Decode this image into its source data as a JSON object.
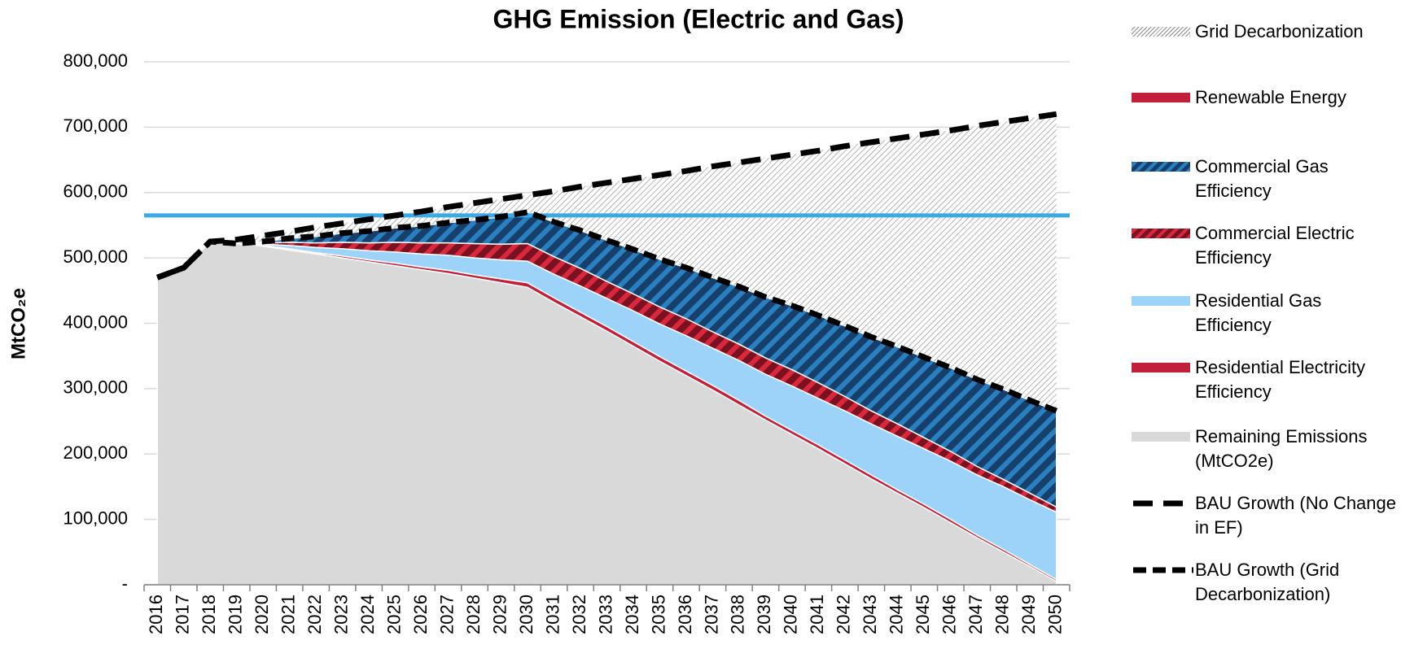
{
  "chart_data": {
    "type": "stacked_area",
    "title": "GHG Emission (Electric and Gas)",
    "y_label": "MtCO₂e",
    "categories": [
      "2016",
      "2017",
      "2018",
      "2019",
      "2020",
      "2021",
      "2022",
      "2023",
      "2024",
      "2025",
      "2026",
      "2027",
      "2028",
      "2029",
      "2030",
      "2031",
      "2032",
      "2033",
      "2034",
      "2035",
      "2036",
      "2037",
      "2038",
      "2039",
      "2040",
      "2041",
      "2042",
      "2043",
      "2044",
      "2045",
      "2046",
      "2047",
      "2048",
      "2049",
      "2050"
    ],
    "ylim": [
      0,
      800000
    ],
    "yticks": [
      {
        "value": 0,
        "label": "-"
      },
      {
        "value": 100000,
        "label": "100,000"
      },
      {
        "value": 200000,
        "label": "200,000"
      },
      {
        "value": 300000,
        "label": "300,000"
      },
      {
        "value": 400000,
        "label": "400,000"
      },
      {
        "value": 500000,
        "label": "500,000"
      },
      {
        "value": 600000,
        "label": "600,000"
      },
      {
        "value": 700000,
        "label": "700,000"
      },
      {
        "value": 800000,
        "label": "800,000"
      }
    ],
    "grid": true,
    "legend": "right",
    "reference_lines": [
      {
        "value": 565000,
        "color": "#3ba8e8"
      }
    ],
    "series": [
      {
        "name": "Grid Decarbonization",
        "kind": "area",
        "color": "#ffffff",
        "pattern": "hatch",
        "pattern_color": "#8c8c8c",
        "values": [
          0,
          0,
          0,
          6000,
          9000,
          10000,
          14000,
          15000,
          18000,
          19000,
          22000,
          24000,
          26000,
          27000,
          26000,
          47000,
          67000,
          88000,
          108000,
          129000,
          148000,
          170000,
          190000,
          212000,
          231000,
          252000,
          275000,
          298000,
          319000,
          341000,
          363000,
          388000,
          409000,
          432000,
          454000
        ]
      },
      {
        "name": "Renewable Energy",
        "kind": "area",
        "color": "#c0203a",
        "values": [
          0,
          0,
          0,
          0,
          0,
          0,
          0,
          0,
          0,
          0,
          0,
          0,
          0,
          0,
          0,
          0,
          0,
          0,
          0,
          0,
          0,
          0,
          0,
          0,
          0,
          0,
          0,
          0,
          0,
          0,
          0,
          0,
          0,
          0,
          0
        ]
      },
      {
        "name": "Commercial Gas Efficiency",
        "kind": "area",
        "color": "#16406b",
        "pattern": "stripes",
        "pattern_color": "#2a7fc0",
        "values": [
          0,
          0,
          0,
          0,
          2000,
          6000,
          10000,
          14000,
          18000,
          22000,
          26000,
          31000,
          36000,
          42000,
          48000,
          53000,
          58000,
          63000,
          68000,
          73000,
          78000,
          83000,
          88000,
          93000,
          98000,
          103000,
          108000,
          113000,
          118000,
          123000,
          128000,
          133000,
          138000,
          142000,
          147000
        ]
      },
      {
        "name": "Commercial Electric Efficiency",
        "kind": "area",
        "color": "#7a1020",
        "pattern": "stripes",
        "pattern_color": "#d8283e",
        "values": [
          0,
          0,
          0,
          0,
          2000,
          5000,
          7000,
          10000,
          12000,
          15000,
          17000,
          19000,
          22000,
          24000,
          27000,
          27000,
          27000,
          26000,
          26000,
          26000,
          26000,
          25000,
          25000,
          25000,
          25000,
          24000,
          22000,
          20000,
          19000,
          17000,
          15000,
          13000,
          11000,
          10000,
          8000
        ]
      },
      {
        "name": "Residential Gas Efficiency",
        "kind": "area",
        "color": "#9dd3f8",
        "values": [
          0,
          0,
          0,
          0,
          2000,
          5000,
          8000,
          11000,
          14000,
          17000,
          20000,
          23000,
          26000,
          29000,
          33000,
          36000,
          40000,
          43000,
          47000,
          50000,
          54000,
          57000,
          61000,
          64000,
          68000,
          71000,
          75000,
          78000,
          82000,
          85000,
          89000,
          92000,
          96000,
          99000,
          103000
        ]
      },
      {
        "name": "Residential Electricity Efficiency",
        "kind": "area",
        "color": "#c0203a",
        "values": [
          0,
          0,
          0,
          0,
          1000,
          2000,
          2000,
          3000,
          3000,
          4000,
          4000,
          5000,
          5000,
          6000,
          7000,
          7000,
          7000,
          7000,
          7000,
          7000,
          7000,
          7000,
          7000,
          6000,
          6000,
          6000,
          6000,
          6000,
          5000,
          5000,
          5000,
          4000,
          4000,
          3000,
          3000
        ]
      },
      {
        "name": "Remaining Emissions (MtCO2e)",
        "kind": "area",
        "color": "#d9d9d9",
        "values": [
          470000,
          485000,
          525000,
          522000,
          518000,
          512000,
          506000,
          500000,
          494000,
          488000,
          482000,
          476000,
          469000,
          462000,
          455000,
          432000,
          410000,
          388000,
          365000,
          342000,
          320000,
          298000,
          275000,
          252000,
          230000,
          208000,
          185000,
          162000,
          140000,
          118000,
          95000,
          72000,
          50000,
          28000,
          5000
        ]
      },
      {
        "name": "BAU Growth (No Change in EF)",
        "kind": "line",
        "color": "#000000",
        "dash": "long",
        "values": [
          470000,
          485000,
          525000,
          528000,
          534000,
          540000,
          547000,
          553000,
          559000,
          565000,
          571000,
          578000,
          584000,
          590000,
          596000,
          602000,
          609000,
          615000,
          621000,
          627000,
          633000,
          640000,
          646000,
          652000,
          658000,
          664000,
          671000,
          677000,
          683000,
          689000,
          695000,
          702000,
          708000,
          714000,
          720000
        ]
      },
      {
        "name": "BAU Growth (Grid Decarbonization)",
        "kind": "line",
        "color": "#000000",
        "dash": "short",
        "values": [
          470000,
          485000,
          525000,
          522000,
          525000,
          530000,
          533000,
          538000,
          541000,
          546000,
          549000,
          554000,
          558000,
          563000,
          570000,
          555000,
          542000,
          527000,
          513000,
          498000,
          485000,
          470000,
          456000,
          440000,
          427000,
          412000,
          396000,
          379000,
          364000,
          348000,
          332000,
          314000,
          299000,
          282000,
          266000
        ]
      }
    ]
  }
}
